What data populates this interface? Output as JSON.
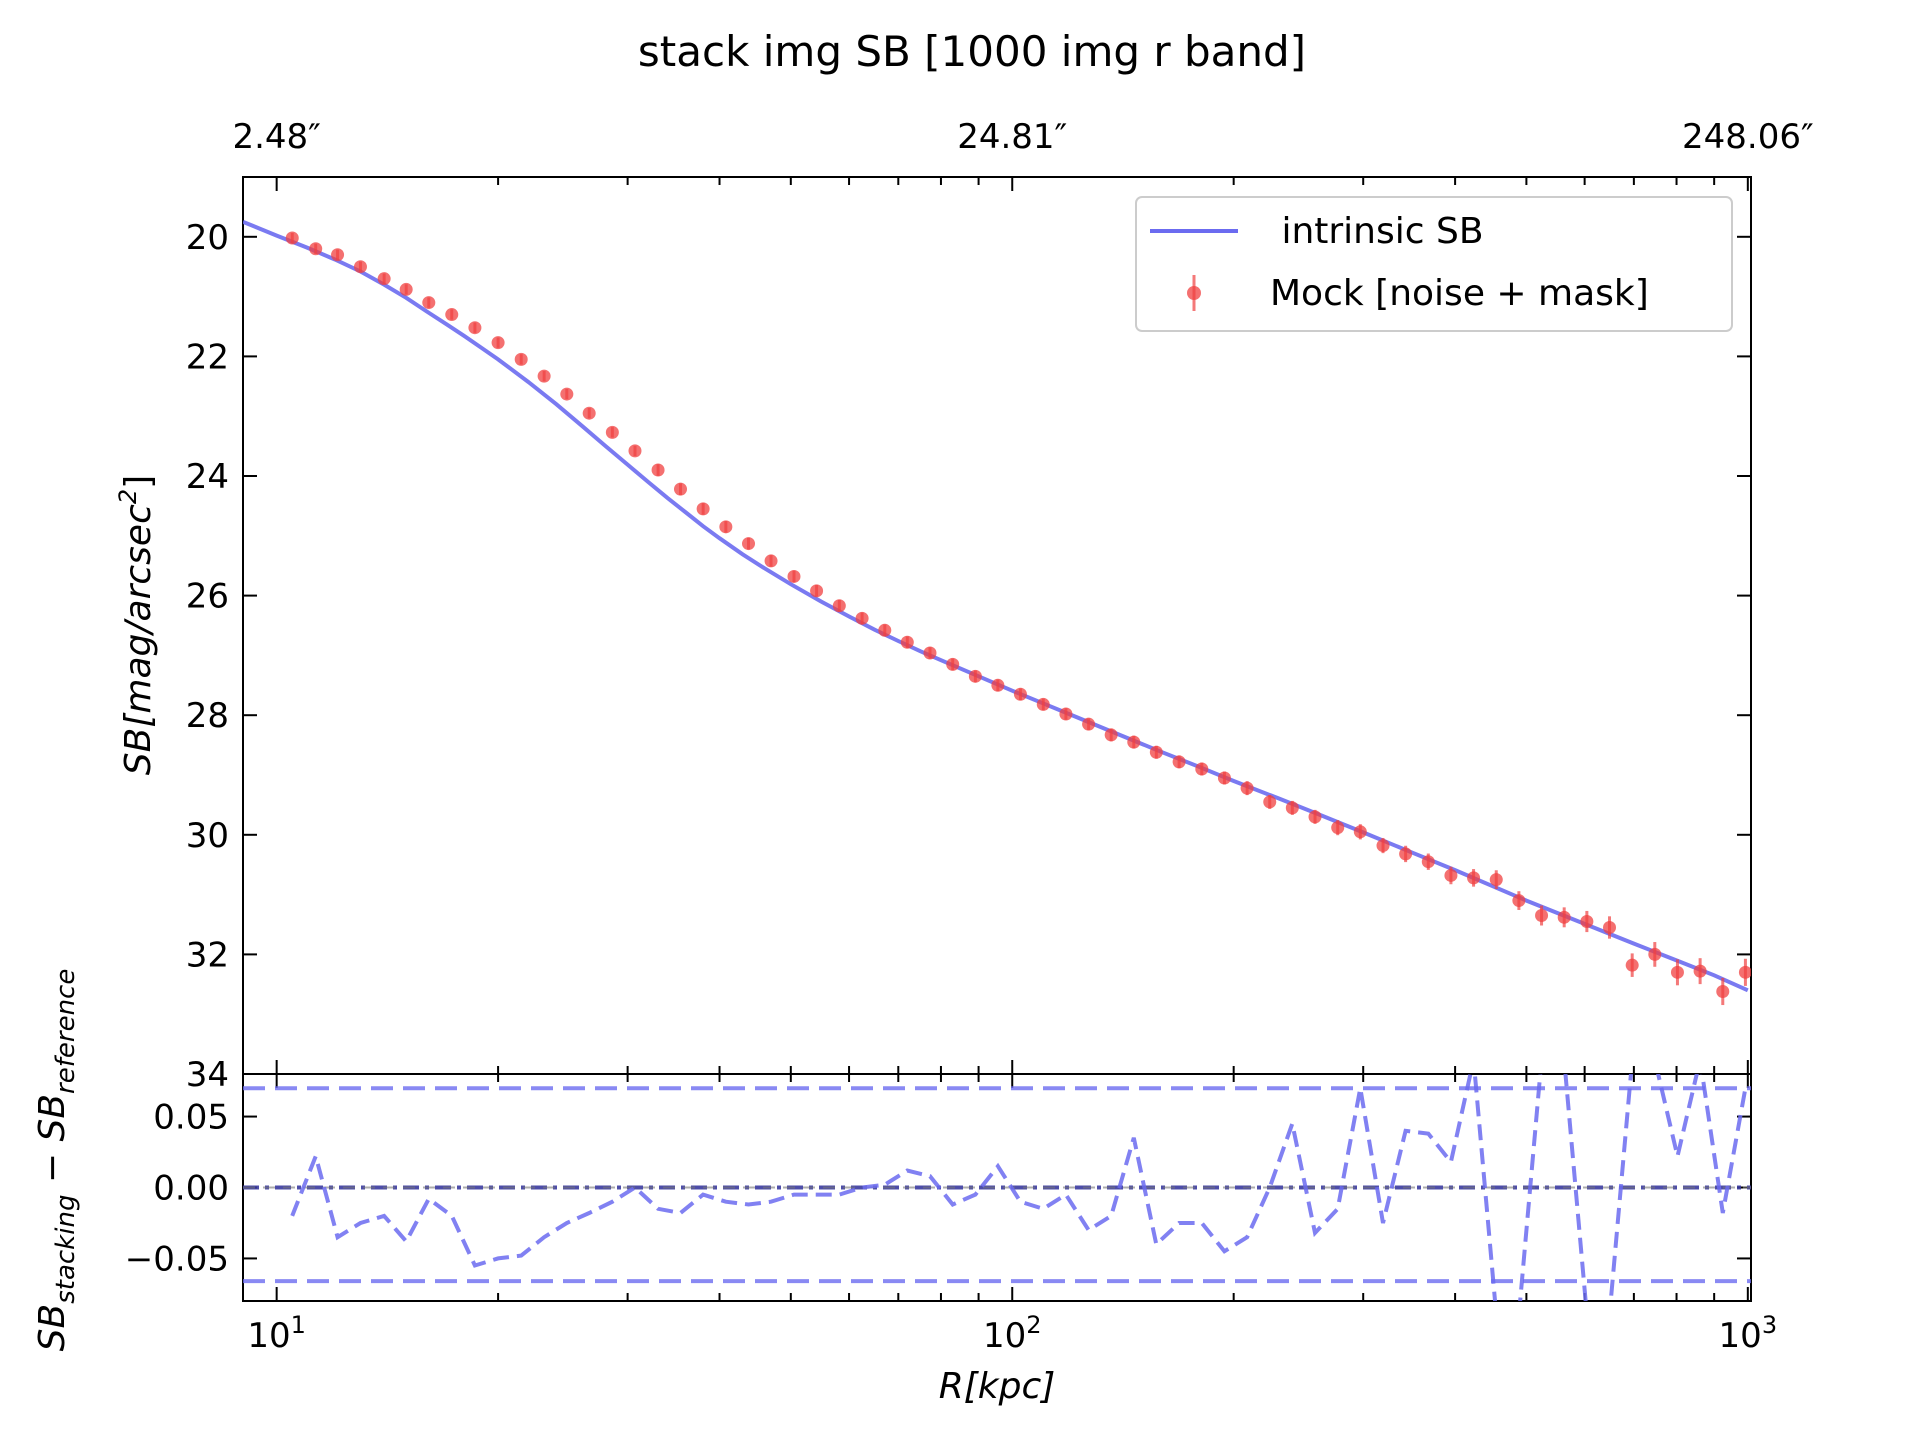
{
  "chart_data": [
    {
      "type": "scatter",
      "title": "stack img SB [1000 img r band]",
      "xlabel": "",
      "ylabel": "SB[mag/arcsec^2]",
      "ylabel_base": "SB[mag/arcsec",
      "ylabel_sup": "2",
      "ylabel_close": "]",
      "xscale": "log",
      "xlim": [
        9.0,
        1010
      ],
      "ylim": [
        34,
        19
      ],
      "y_inverted": true,
      "yticks": [
        "20",
        "22",
        "24",
        "26",
        "28",
        "30",
        "32",
        "34"
      ],
      "top_axis_ticks": [
        "2.48″",
        "24.81″",
        "248.06″"
      ],
      "top_axis_values": [
        10,
        100,
        1000
      ],
      "legend_placement": "upper right",
      "grid": false,
      "series": [
        {
          "name": "intrinsic SB",
          "kind": "line",
          "color": "#6b6bf0",
          "x": [
            9,
            10,
            11,
            12,
            13,
            14,
            15,
            16,
            17,
            18,
            19,
            20,
            22,
            24,
            26,
            28,
            30,
            32,
            34,
            36,
            38,
            40,
            43,
            46,
            50,
            55,
            60,
            65,
            70,
            75,
            80,
            90,
            100,
            110,
            120,
            140,
            160,
            180,
            200,
            230,
            260,
            300,
            350,
            400,
            450,
            500,
            600,
            700,
            800,
            900,
            1000
          ],
          "y": [
            19.75,
            19.98,
            20.18,
            20.38,
            20.58,
            20.8,
            21.02,
            21.25,
            21.46,
            21.66,
            21.86,
            22.05,
            22.43,
            22.8,
            23.16,
            23.5,
            23.81,
            24.1,
            24.37,
            24.61,
            24.84,
            25.04,
            25.31,
            25.54,
            25.81,
            26.1,
            26.35,
            26.57,
            26.76,
            26.93,
            27.08,
            27.35,
            27.59,
            27.8,
            27.99,
            28.33,
            28.62,
            28.87,
            29.1,
            29.39,
            29.65,
            29.96,
            30.3,
            30.59,
            30.86,
            31.1,
            31.49,
            31.82,
            32.1,
            32.35,
            32.6
          ]
        },
        {
          "name": "Mock [noise + mask]",
          "kind": "errorbar",
          "color": "#f04040",
          "x": [
            10.5,
            11.3,
            12.1,
            13.0,
            14.0,
            15.0,
            16.1,
            17.3,
            18.6,
            20.0,
            21.5,
            23.1,
            24.8,
            26.6,
            28.6,
            30.7,
            33.0,
            35.4,
            38.0,
            40.8,
            43.8,
            47.0,
            50.5,
            54.2,
            58.2,
            62.5,
            67.1,
            72.0,
            77.3,
            83.0,
            89.1,
            95.6,
            102.6,
            110.2,
            118.3,
            127.0,
            136.3,
            146.3,
            157.0,
            168.6,
            181.0,
            194.3,
            208.6,
            223.9,
            240.3,
            258.0,
            277.0,
            297.3,
            319.2,
            342.6,
            367.8,
            394.8,
            423.8,
            455.0,
            488.4,
            524.3,
            562.8,
            604.2,
            648.6,
            696.3,
            747.4,
            802.3,
            861.3,
            924.6,
            992.5
          ],
          "y": [
            20.02,
            20.2,
            20.3,
            20.5,
            20.7,
            20.88,
            21.1,
            21.3,
            21.52,
            21.77,
            22.05,
            22.33,
            22.63,
            22.95,
            23.27,
            23.58,
            23.9,
            24.22,
            24.55,
            24.85,
            25.13,
            25.42,
            25.68,
            25.92,
            26.17,
            26.38,
            26.58,
            26.78,
            26.96,
            27.15,
            27.35,
            27.5,
            27.65,
            27.82,
            27.98,
            28.15,
            28.33,
            28.45,
            28.62,
            28.78,
            28.9,
            29.05,
            29.22,
            29.45,
            29.55,
            29.7,
            29.88,
            29.95,
            30.18,
            30.32,
            30.45,
            30.68,
            30.72,
            30.75,
            31.1,
            31.35,
            31.38,
            31.45,
            31.55,
            32.18,
            32.0,
            32.3,
            32.28,
            32.62,
            32.3
          ],
          "yerr": [
            0.02,
            0.02,
            0.02,
            0.02,
            0.02,
            0.02,
            0.02,
            0.02,
            0.02,
            0.02,
            0.02,
            0.02,
            0.02,
            0.02,
            0.02,
            0.02,
            0.03,
            0.03,
            0.03,
            0.03,
            0.03,
            0.03,
            0.03,
            0.03,
            0.03,
            0.03,
            0.03,
            0.03,
            0.03,
            0.03,
            0.03,
            0.03,
            0.03,
            0.03,
            0.03,
            0.03,
            0.04,
            0.04,
            0.04,
            0.04,
            0.04,
            0.04,
            0.05,
            0.05,
            0.05,
            0.05,
            0.06,
            0.06,
            0.06,
            0.07,
            0.07,
            0.08,
            0.08,
            0.09,
            0.09,
            0.1,
            0.1,
            0.11,
            0.12,
            0.13,
            0.14,
            0.15,
            0.15,
            0.16,
            0.16
          ]
        }
      ]
    },
    {
      "type": "line",
      "title": "",
      "xlabel": "R[kpc]",
      "ylabel": "SB_stacking − SB_reference",
      "ylabel_a": "SB",
      "ylabel_a_sub": "stacking",
      "ylabel_mid": " − SB",
      "ylabel_b_sub": "reference",
      "xscale": "log",
      "xlim": [
        9.0,
        1010
      ],
      "ylim": [
        -0.08,
        0.08
      ],
      "xtick_base": "10",
      "xtick_exps": [
        "1",
        "2",
        "3"
      ],
      "xtick_values": [
        10,
        100,
        1000
      ],
      "yticks": [
        "0.05",
        "0.00",
        "−0.05"
      ],
      "ytick_values": [
        0.05,
        0.0,
        -0.05
      ],
      "grid": false,
      "hlines": [
        {
          "y": 0.07,
          "style": "dashed",
          "color": "#6b6bf0"
        },
        {
          "y": -0.066,
          "style": "dashed",
          "color": "#6b6bf0"
        },
        {
          "y": 0.0,
          "style": "dashdot",
          "color": "#3a3aa0"
        }
      ],
      "series": [
        {
          "kind": "dashed-line",
          "color": "#6b6bf0",
          "x": [
            10.5,
            11.3,
            12.1,
            13.0,
            14.0,
            15.0,
            16.1,
            17.3,
            18.6,
            20.0,
            21.5,
            23.1,
            24.8,
            26.6,
            28.6,
            30.7,
            33.0,
            35.4,
            38.0,
            40.8,
            43.8,
            47.0,
            50.5,
            54.2,
            58.2,
            62.5,
            67.1,
            72.0,
            77.3,
            83.0,
            89.1,
            95.6,
            102.6,
            110.2,
            118.3,
            127.0,
            136.3,
            146.3,
            157.0,
            168.6,
            181.0,
            194.3,
            208.6,
            223.9,
            240.3,
            258.0,
            277.0,
            297.3,
            319.2,
            342.6,
            367.8,
            394.8,
            423.8,
            455.0,
            488.4,
            524.3,
            562.8,
            604.2,
            648.6,
            696.3,
            747.4,
            802.3,
            861.3,
            924.6,
            992.5
          ],
          "y": [
            -0.02,
            0.022,
            -0.035,
            -0.025,
            -0.02,
            -0.038,
            -0.008,
            -0.02,
            -0.055,
            -0.05,
            -0.048,
            -0.035,
            -0.025,
            -0.018,
            -0.01,
            0.0,
            -0.015,
            -0.018,
            -0.005,
            -0.01,
            -0.012,
            -0.01,
            -0.005,
            -0.005,
            -0.005,
            0.0,
            0.002,
            0.012,
            0.008,
            -0.012,
            -0.005,
            0.015,
            -0.01,
            -0.015,
            -0.005,
            -0.03,
            -0.02,
            0.035,
            -0.04,
            -0.025,
            -0.025,
            -0.045,
            -0.035,
            0.0,
            0.045,
            -0.032,
            -0.015,
            0.07,
            -0.025,
            0.04,
            0.038,
            0.018,
            0.09,
            -0.09,
            -0.09,
            0.09,
            0.09,
            -0.09,
            -0.09,
            0.09,
            0.09,
            0.022,
            0.09,
            -0.018,
            0.07
          ]
        }
      ]
    }
  ],
  "legend": {
    "line_label": " intrinsic SB",
    "marker_label": "Mock [noise + mask]"
  },
  "colors": {
    "model_line": "#6b6bf0",
    "mock_points": "#f04040",
    "residual_line": "#6b6bf0",
    "zero_line": "#3a3aa0"
  }
}
